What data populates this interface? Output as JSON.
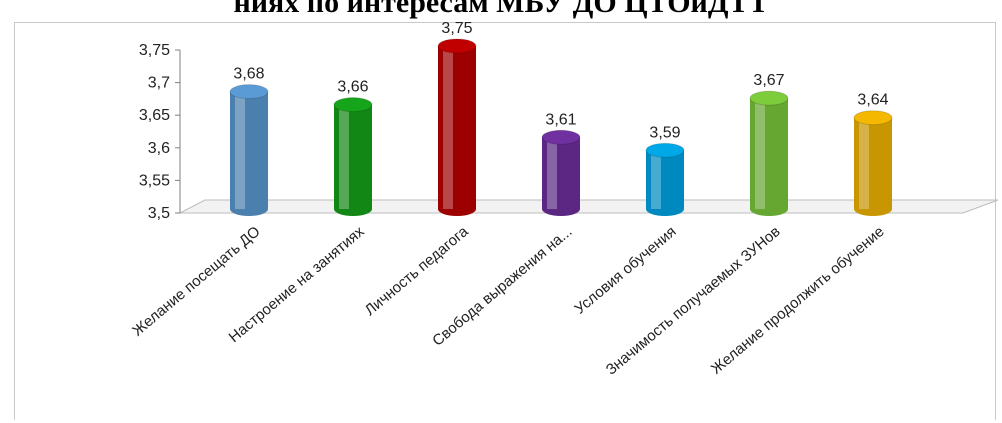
{
  "title": "ниях по интересам МБУ ДО ЦТОиДТТ",
  "chart_data": {
    "type": "bar",
    "categories": [
      "Желание посещать ДО",
      "Настроение на занятиях",
      "Личность педагога",
      "Свобода выражения на...",
      "Условия обучения",
      "Значимость получаемых ЗУНов",
      "Желание продолжить обучение"
    ],
    "values": [
      3.68,
      3.66,
      3.75,
      3.61,
      3.59,
      3.67,
      3.64
    ],
    "value_labels": [
      "3,68",
      "3,66",
      "3,75",
      "3,61",
      "3,59",
      "3,67",
      "3,64"
    ],
    "colors": [
      "#5b9bd5",
      "#16a51a",
      "#c00000",
      "#7030a0",
      "#00a8e8",
      "#7ccc3c",
      "#f5b800"
    ],
    "ylim": [
      3.5,
      3.75
    ],
    "yticks": [
      3.5,
      3.55,
      3.6,
      3.65,
      3.7,
      3.75
    ],
    "ytick_labels": [
      "3,5",
      "3,55",
      "3,6",
      "3,65",
      "3,7",
      "3,75"
    ],
    "grid": false,
    "legend": "none",
    "style": "3d-cylinder"
  }
}
